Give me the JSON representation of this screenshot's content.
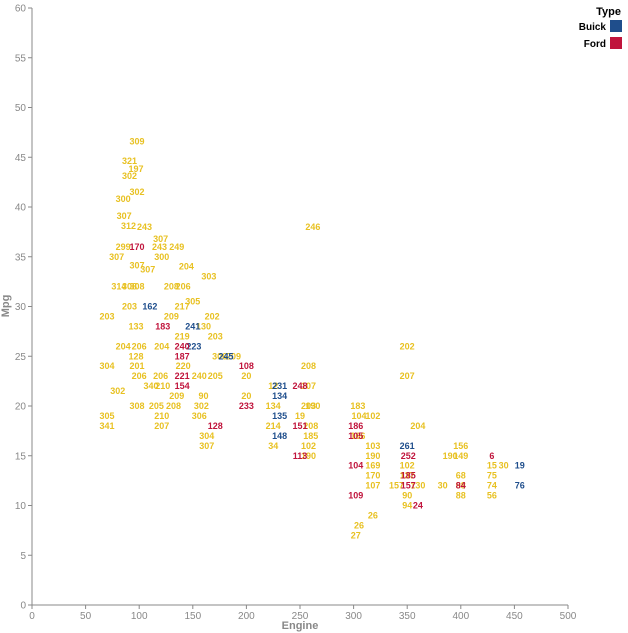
{
  "chart_data": {
    "type": "scatter",
    "xlabel": "Engine",
    "ylabel": "Mpg",
    "xlim": [
      0,
      500
    ],
    "ylim": [
      0,
      60
    ],
    "x_ticks": [
      "0",
      "50",
      "100",
      "150",
      "200",
      "250",
      "300",
      "350",
      "400",
      "450",
      "500"
    ],
    "y_ticks": [
      "0",
      "5",
      "10",
      "15",
      "20",
      "25",
      "30",
      "35",
      "40",
      "45",
      "50",
      "55",
      "60"
    ],
    "grid": false,
    "legend_position": "top-right",
    "legend_title": "Type",
    "series": [
      {
        "name": "Buick",
        "color": "#1f4e8c",
        "points": [
          {
            "x": 350,
            "y": 16,
            "label": "261"
          },
          {
            "x": 455,
            "y": 14,
            "label": "19"
          },
          {
            "x": 455,
            "y": 12,
            "label": "76"
          },
          {
            "x": 231,
            "y": 22,
            "label": "231"
          },
          {
            "x": 231,
            "y": 21,
            "label": "134"
          },
          {
            "x": 231,
            "y": 17,
            "label": "148"
          },
          {
            "x": 150,
            "y": 28,
            "label": "241"
          },
          {
            "x": 181,
            "y": 25,
            "label": "245"
          },
          {
            "x": 110,
            "y": 30,
            "label": "162"
          },
          {
            "x": 151,
            "y": 26,
            "label": "223"
          },
          {
            "x": 231,
            "y": 19,
            "label": "135"
          }
        ]
      },
      {
        "name": "Ford",
        "color": "#c0143c",
        "points": [
          {
            "x": 200,
            "y": 24,
            "label": "108"
          },
          {
            "x": 250,
            "y": 22,
            "label": "248"
          },
          {
            "x": 200,
            "y": 20,
            "label": "233"
          },
          {
            "x": 250,
            "y": 18,
            "label": "151"
          },
          {
            "x": 250,
            "y": 15,
            "label": "113"
          },
          {
            "x": 171,
            "y": 18,
            "label": "128"
          },
          {
            "x": 302,
            "y": 18,
            "label": "186"
          },
          {
            "x": 302,
            "y": 14,
            "label": "104"
          },
          {
            "x": 302,
            "y": 11,
            "label": "109"
          },
          {
            "x": 351,
            "y": 15,
            "label": "252"
          },
          {
            "x": 351,
            "y": 13,
            "label": "185"
          },
          {
            "x": 351,
            "y": 12,
            "label": "157"
          },
          {
            "x": 429,
            "y": 15,
            "label": "6"
          },
          {
            "x": 400,
            "y": 12,
            "label": "84"
          },
          {
            "x": 360,
            "y": 10,
            "label": "24"
          },
          {
            "x": 140,
            "y": 26,
            "label": "240"
          },
          {
            "x": 140,
            "y": 25,
            "label": "187"
          },
          {
            "x": 140,
            "y": 23,
            "label": "221"
          },
          {
            "x": 140,
            "y": 22,
            "label": "154"
          },
          {
            "x": 122,
            "y": 28,
            "label": "183"
          },
          {
            "x": 98,
            "y": 36,
            "label": "170"
          },
          {
            "x": 302,
            "y": 17,
            "label": "105"
          }
        ]
      },
      {
        "name": "",
        "color": "#e8c122",
        "points": [
          {
            "x": 98,
            "y": 46.6,
            "label": "309"
          },
          {
            "x": 91,
            "y": 44.6,
            "label": "321"
          },
          {
            "x": 97,
            "y": 43.8,
            "label": "197"
          },
          {
            "x": 91,
            "y": 43.1,
            "label": "302"
          },
          {
            "x": 98,
            "y": 41.5,
            "label": "302"
          },
          {
            "x": 85,
            "y": 40.8,
            "label": "300"
          },
          {
            "x": 86,
            "y": 39.1,
            "label": "307"
          },
          {
            "x": 90,
            "y": 38.1,
            "label": "312"
          },
          {
            "x": 105,
            "y": 38,
            "label": "243"
          },
          {
            "x": 262,
            "y": 38,
            "label": "246"
          },
          {
            "x": 120,
            "y": 36.8,
            "label": "307"
          },
          {
            "x": 119,
            "y": 36,
            "label": "243"
          },
          {
            "x": 135,
            "y": 36,
            "label": "249"
          },
          {
            "x": 85,
            "y": 36,
            "label": "299"
          },
          {
            "x": 79,
            "y": 35,
            "label": "307"
          },
          {
            "x": 98,
            "y": 34.1,
            "label": "307"
          },
          {
            "x": 121,
            "y": 35,
            "label": "300"
          },
          {
            "x": 108,
            "y": 33.7,
            "label": "307"
          },
          {
            "x": 144,
            "y": 34,
            "label": "204"
          },
          {
            "x": 165,
            "y": 33,
            "label": "303"
          },
          {
            "x": 81,
            "y": 32,
            "label": "314"
          },
          {
            "x": 98,
            "y": 32,
            "label": "308"
          },
          {
            "x": 91,
            "y": 32,
            "label": "308"
          },
          {
            "x": 130,
            "y": 32,
            "label": "208"
          },
          {
            "x": 141,
            "y": 32,
            "label": "206"
          },
          {
            "x": 150,
            "y": 30.5,
            "label": "305"
          },
          {
            "x": 140,
            "y": 30,
            "label": "217"
          },
          {
            "x": 91,
            "y": 30,
            "label": "203"
          },
          {
            "x": 70,
            "y": 29,
            "label": "203"
          },
          {
            "x": 130,
            "y": 29,
            "label": "209"
          },
          {
            "x": 168,
            "y": 29,
            "label": "202"
          },
          {
            "x": 97,
            "y": 28,
            "label": "133"
          },
          {
            "x": 160,
            "y": 28,
            "label": "130"
          },
          {
            "x": 140,
            "y": 27,
            "label": "219"
          },
          {
            "x": 171,
            "y": 27,
            "label": "203"
          },
          {
            "x": 100,
            "y": 26,
            "label": "206"
          },
          {
            "x": 85,
            "y": 26,
            "label": "204"
          },
          {
            "x": 121,
            "y": 26,
            "label": "204"
          },
          {
            "x": 175,
            "y": 25,
            "label": "306"
          },
          {
            "x": 188,
            "y": 25,
            "label": "209"
          },
          {
            "x": 97,
            "y": 25,
            "label": "128"
          },
          {
            "x": 70,
            "y": 24,
            "label": "304"
          },
          {
            "x": 98,
            "y": 24,
            "label": "201"
          },
          {
            "x": 141,
            "y": 24,
            "label": "220"
          },
          {
            "x": 171,
            "y": 23,
            "label": "205"
          },
          {
            "x": 156,
            "y": 23,
            "label": "240"
          },
          {
            "x": 100,
            "y": 23,
            "label": "206"
          },
          {
            "x": 120,
            "y": 23,
            "label": "206"
          },
          {
            "x": 200,
            "y": 23,
            "label": "20"
          },
          {
            "x": 111,
            "y": 22,
            "label": "340"
          },
          {
            "x": 122,
            "y": 22,
            "label": "210"
          },
          {
            "x": 80,
            "y": 21.5,
            "label": "302"
          },
          {
            "x": 135,
            "y": 21,
            "label": "209"
          },
          {
            "x": 160,
            "y": 21,
            "label": "90"
          },
          {
            "x": 200,
            "y": 21,
            "label": "20"
          },
          {
            "x": 98,
            "y": 20,
            "label": "308"
          },
          {
            "x": 116,
            "y": 20,
            "label": "205"
          },
          {
            "x": 132,
            "y": 20,
            "label": "208"
          },
          {
            "x": 158,
            "y": 20,
            "label": "302"
          },
          {
            "x": 70,
            "y": 19,
            "label": "305"
          },
          {
            "x": 121,
            "y": 19,
            "label": "210"
          },
          {
            "x": 156,
            "y": 19,
            "label": "306"
          },
          {
            "x": 70,
            "y": 18,
            "label": "341"
          },
          {
            "x": 121,
            "y": 18,
            "label": "207"
          },
          {
            "x": 163,
            "y": 17,
            "label": "304"
          },
          {
            "x": 163,
            "y": 16,
            "label": "307"
          },
          {
            "x": 258,
            "y": 20,
            "label": "203"
          },
          {
            "x": 258,
            "y": 22,
            "label": "107"
          },
          {
            "x": 258,
            "y": 24,
            "label": "208"
          },
          {
            "x": 262,
            "y": 20,
            "label": "190"
          },
          {
            "x": 260,
            "y": 18,
            "label": "208"
          },
          {
            "x": 260,
            "y": 17,
            "label": "185"
          },
          {
            "x": 258,
            "y": 16,
            "label": "102"
          },
          {
            "x": 258,
            "y": 15,
            "label": "190"
          },
          {
            "x": 225,
            "y": 22,
            "label": "12"
          },
          {
            "x": 225,
            "y": 20,
            "label": "134"
          },
          {
            "x": 225,
            "y": 18,
            "label": "214"
          },
          {
            "x": 225,
            "y": 16,
            "label": "34"
          },
          {
            "x": 250,
            "y": 19,
            "label": "19"
          },
          {
            "x": 304,
            "y": 20,
            "label": "183"
          },
          {
            "x": 305,
            "y": 19,
            "label": "104"
          },
          {
            "x": 318,
            "y": 19,
            "label": "102"
          },
          {
            "x": 304,
            "y": 17,
            "label": "166"
          },
          {
            "x": 318,
            "y": 16,
            "label": "103"
          },
          {
            "x": 318,
            "y": 15,
            "label": "190"
          },
          {
            "x": 318,
            "y": 14,
            "label": "169"
          },
          {
            "x": 318,
            "y": 13,
            "label": "170"
          },
          {
            "x": 318,
            "y": 12,
            "label": "107"
          },
          {
            "x": 318,
            "y": 9,
            "label": "26"
          },
          {
            "x": 305,
            "y": 8,
            "label": "26"
          },
          {
            "x": 302,
            "y": 7,
            "label": "27"
          },
          {
            "x": 350,
            "y": 26,
            "label": "202"
          },
          {
            "x": 350,
            "y": 23,
            "label": "207"
          },
          {
            "x": 360,
            "y": 18,
            "label": "204"
          },
          {
            "x": 350,
            "y": 14,
            "label": "102"
          },
          {
            "x": 350,
            "y": 13,
            "label": "137"
          },
          {
            "x": 360,
            "y": 12,
            "label": "130"
          },
          {
            "x": 340,
            "y": 12,
            "label": "157"
          },
          {
            "x": 350,
            "y": 11,
            "label": "90"
          },
          {
            "x": 350,
            "y": 10,
            "label": "94"
          },
          {
            "x": 400,
            "y": 16,
            "label": "156"
          },
          {
            "x": 400,
            "y": 15,
            "label": "149"
          },
          {
            "x": 390,
            "y": 15,
            "label": "190"
          },
          {
            "x": 400,
            "y": 13,
            "label": "68"
          },
          {
            "x": 400,
            "y": 12,
            "label": "98"
          },
          {
            "x": 400,
            "y": 11,
            "label": "88"
          },
          {
            "x": 383,
            "y": 12,
            "label": "30"
          },
          {
            "x": 440,
            "y": 14,
            "label": "30"
          },
          {
            "x": 429,
            "y": 14,
            "label": "15"
          },
          {
            "x": 429,
            "y": 13,
            "label": "75"
          },
          {
            "x": 429,
            "y": 12,
            "label": "74"
          },
          {
            "x": 429,
            "y": 11,
            "label": "56"
          }
        ]
      }
    ]
  }
}
